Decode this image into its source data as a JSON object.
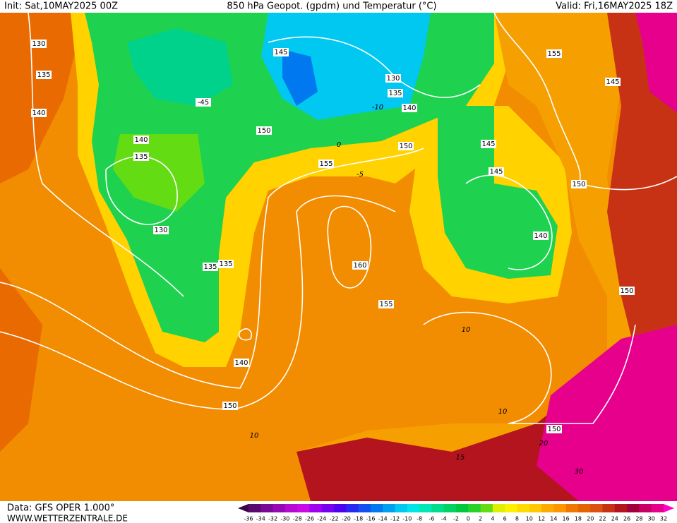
{
  "header": {
    "init": "Init: Sat,10MAY2025 00Z",
    "title": "850 hPa Geopot. (gpdm) und Temperatur (°C)",
    "valid": "Valid: Fri,16MAY2025 18Z"
  },
  "footer": {
    "source": "Data: GFS OPER 1.000°",
    "website": "WWW.WETTERZENTRALE.DE"
  },
  "legend": {
    "ticks": [
      -36,
      -34,
      -32,
      -30,
      -28,
      -26,
      -24,
      -22,
      -20,
      -18,
      -16,
      -14,
      -12,
      -10,
      -8,
      -6,
      -4,
      -2,
      0,
      2,
      4,
      6,
      8,
      10,
      12,
      14,
      16,
      18,
      20,
      22,
      24,
      26,
      28,
      30,
      32
    ],
    "colors": [
      "#3c0046",
      "#5a0a6e",
      "#780a96",
      "#960ab4",
      "#b40ad2",
      "#c80ae6",
      "#a000f0",
      "#7800f0",
      "#5000f0",
      "#2828f0",
      "#1450f0",
      "#0078f0",
      "#00a0f0",
      "#00c8f0",
      "#00e6e6",
      "#00e6b4",
      "#00dc8c",
      "#00d264",
      "#00c83c",
      "#28d228",
      "#64dc14",
      "#dcf000",
      "#fff000",
      "#ffdc00",
      "#ffc800",
      "#ffaa00",
      "#ff9600",
      "#f07800",
      "#e66400",
      "#dc5014",
      "#c83214",
      "#b4141e",
      "#a0003c",
      "#c80064",
      "#e6008c",
      "#ff00c8"
    ]
  },
  "contour_labels": [
    130,
    135,
    140,
    140,
    135,
    130,
    135,
    135,
    145,
    130,
    135,
    140,
    -45,
    150,
    155,
    150,
    145,
    145,
    155,
    145,
    150,
    140,
    160,
    155,
    150,
    140,
    150,
    150
  ],
  "isotherm_labels": [
    -10,
    0,
    -5,
    10,
    10,
    20,
    15,
    30,
    10
  ]
}
